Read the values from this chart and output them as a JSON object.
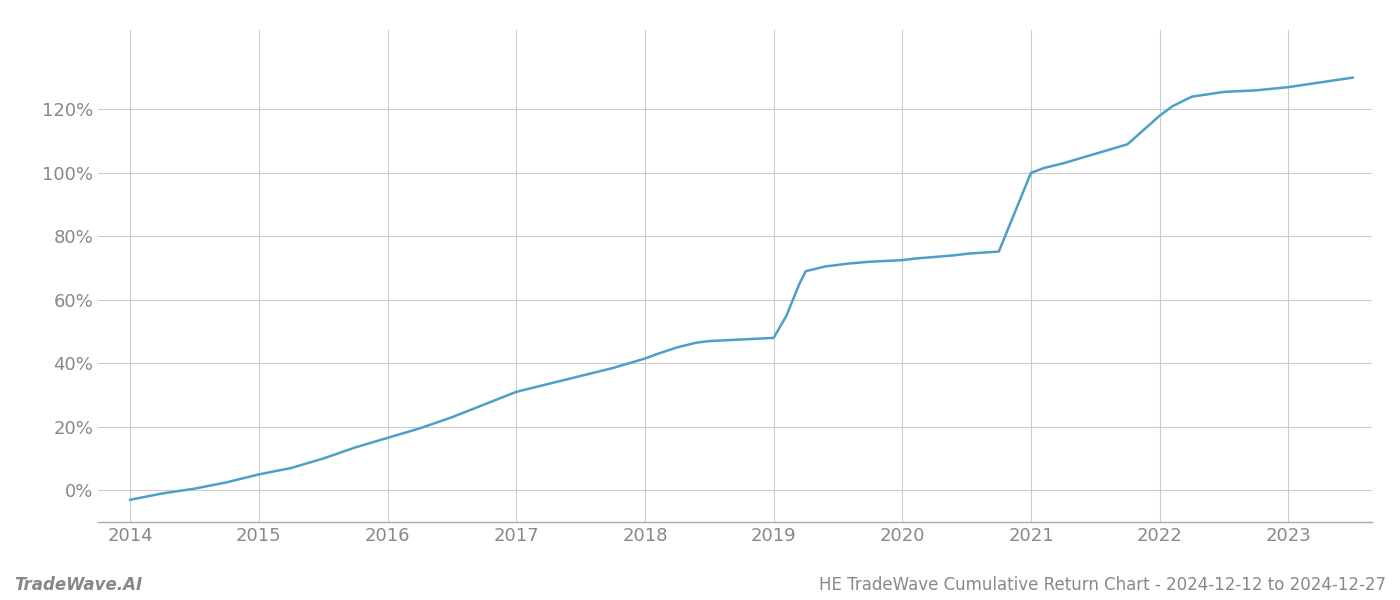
{
  "title": "HE TradeWave Cumulative Return Chart - 2024-12-12 to 2024-12-27",
  "watermark": "TradeWave.AI",
  "line_color": "#4d9fca",
  "background_color": "#ffffff",
  "grid_color": "#cccccc",
  "x_values": [
    2014.0,
    2014.25,
    2014.5,
    2014.75,
    2015.0,
    2015.25,
    2015.5,
    2015.75,
    2016.0,
    2016.25,
    2016.5,
    2016.75,
    2017.0,
    2017.25,
    2017.5,
    2017.75,
    2018.0,
    2018.1,
    2018.25,
    2018.4,
    2018.5,
    2018.75,
    2019.0,
    2019.1,
    2019.2,
    2019.25,
    2019.4,
    2019.5,
    2019.6,
    2019.75,
    2020.0,
    2020.1,
    2020.25,
    2020.4,
    2020.5,
    2020.6,
    2020.75,
    2021.0,
    2021.1,
    2021.25,
    2021.5,
    2021.75,
    2022.0,
    2022.1,
    2022.25,
    2022.5,
    2022.75,
    2023.0,
    2023.25,
    2023.5
  ],
  "y_values": [
    -3.0,
    -1.0,
    0.5,
    2.5,
    5.0,
    7.0,
    10.0,
    13.5,
    16.5,
    19.5,
    23.0,
    27.0,
    31.0,
    33.5,
    36.0,
    38.5,
    41.5,
    43.0,
    45.0,
    46.5,
    47.0,
    47.5,
    48.0,
    55.0,
    65.0,
    69.0,
    70.5,
    71.0,
    71.5,
    72.0,
    72.5,
    73.0,
    73.5,
    74.0,
    74.5,
    74.8,
    75.2,
    100.0,
    101.5,
    103.0,
    106.0,
    109.0,
    118.0,
    121.0,
    124.0,
    125.5,
    126.0,
    127.0,
    128.5,
    130.0
  ],
  "xlim": [
    2013.75,
    2023.65
  ],
  "ylim": [
    -10,
    145
  ],
  "yticks": [
    0,
    20,
    40,
    60,
    80,
    100,
    120
  ],
  "xticks": [
    2014,
    2015,
    2016,
    2017,
    2018,
    2019,
    2020,
    2021,
    2022,
    2023
  ],
  "tick_color": "#888888",
  "tick_fontsize": 13,
  "footer_fontsize": 12,
  "line_width": 1.8
}
